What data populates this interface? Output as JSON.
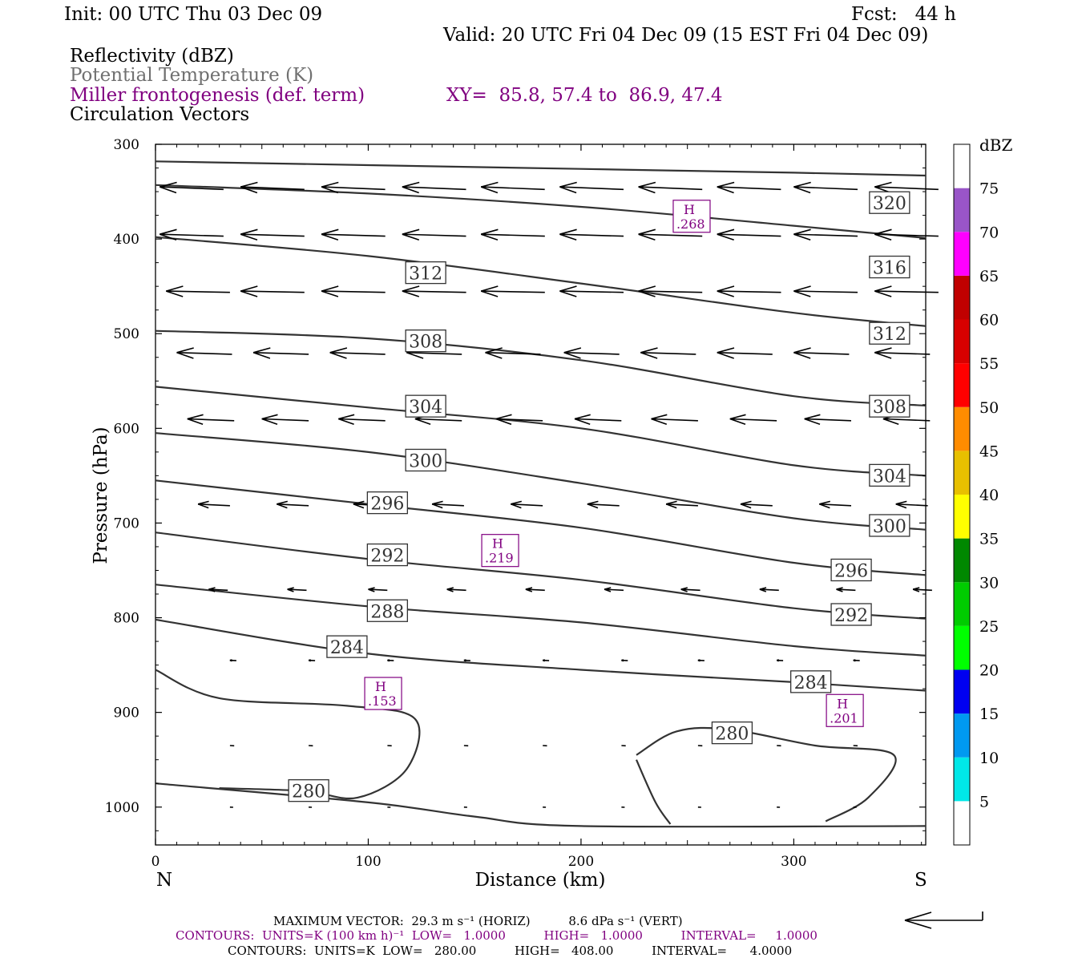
{
  "header": {
    "init": "Init: 00 UTC Thu 03 Dec 09",
    "fcst": "Fcst:   44 h",
    "valid": "Valid: 20 UTC Fri 04 Dec 09 (15 EST Fri 04 Dec 09)",
    "fields": [
      {
        "text": "Reflectivity (dBZ)",
        "color": "#000000"
      },
      {
        "text": "Potential Temperature (K)",
        "color": "#707070"
      },
      {
        "text": "Miller frontogenesis (def. term)",
        "color": "#800080"
      },
      {
        "text": "Circulation Vectors",
        "color": "#000000"
      }
    ],
    "xy": "XY=  85.8, 57.4 to  86.9, 47.4"
  },
  "chart_data": {
    "type": "line",
    "xlabel": "Distance (km)",
    "ylabel": "Pressure (hPa)",
    "x_left_label": "N",
    "x_right_label": "S",
    "xlim": [
      0,
      362
    ],
    "ylim": [
      300,
      1040
    ],
    "y_log_scale": false,
    "xticks": [
      0,
      100,
      200,
      300
    ],
    "yticks": [
      300,
      400,
      500,
      600,
      700,
      800,
      900,
      1000
    ],
    "isentropes": [
      {
        "theta": "320",
        "points": [
          [
            0,
            318
          ],
          [
            100,
            322
          ],
          [
            200,
            326
          ],
          [
            300,
            330
          ],
          [
            362,
            333
          ]
        ]
      },
      {
        "theta": "316",
        "points": [
          [
            0,
            343
          ],
          [
            100,
            352
          ],
          [
            200,
            366
          ],
          [
            300,
            386
          ],
          [
            362,
            399
          ]
        ]
      },
      {
        "theta": "312",
        "points": [
          [
            0,
            398
          ],
          [
            100,
            418
          ],
          [
            200,
            447
          ],
          [
            300,
            478
          ],
          [
            362,
            492
          ]
        ]
      },
      {
        "theta": "308",
        "points": [
          [
            0,
            497
          ],
          [
            100,
            505
          ],
          [
            200,
            528
          ],
          [
            300,
            566
          ],
          [
            362,
            576
          ]
        ]
      },
      {
        "theta": "304",
        "points": [
          [
            0,
            556
          ],
          [
            100,
            578
          ],
          [
            200,
            600
          ],
          [
            300,
            639
          ],
          [
            362,
            650
          ]
        ]
      },
      {
        "theta": "300",
        "points": [
          [
            0,
            605
          ],
          [
            100,
            625
          ],
          [
            200,
            658
          ],
          [
            300,
            695
          ],
          [
            362,
            707
          ]
        ]
      },
      {
        "theta": "296",
        "points": [
          [
            0,
            655
          ],
          [
            100,
            680
          ],
          [
            200,
            705
          ],
          [
            300,
            742
          ],
          [
            362,
            755
          ]
        ]
      },
      {
        "theta": "292",
        "points": [
          [
            0,
            710
          ],
          [
            100,
            738
          ],
          [
            200,
            760
          ],
          [
            300,
            790
          ],
          [
            362,
            801
          ]
        ]
      },
      {
        "theta": "288",
        "points": [
          [
            0,
            765
          ],
          [
            100,
            788
          ],
          [
            200,
            805
          ],
          [
            300,
            830
          ],
          [
            362,
            840
          ]
        ]
      },
      {
        "theta": "284",
        "points": [
          [
            0,
            802
          ],
          [
            100,
            838
          ],
          [
            200,
            855
          ],
          [
            300,
            868
          ],
          [
            362,
            877
          ]
        ]
      }
    ],
    "contour_280": [
      {
        "points": [
          [
            0,
            855
          ],
          [
            30,
            885
          ],
          [
            90,
            893
          ],
          [
            122,
            907
          ],
          [
            118,
            960
          ],
          [
            95,
            990
          ],
          [
            70,
            983
          ],
          [
            30,
            980
          ]
        ]
      },
      {
        "points": [
          [
            226,
            945
          ],
          [
            245,
            920
          ],
          [
            270,
            918
          ],
          [
            310,
            935
          ],
          [
            347,
            945
          ],
          [
            335,
            990
          ],
          [
            315,
            1015
          ]
        ]
      },
      {
        "points": [
          [
            226,
            950
          ],
          [
            235,
            995
          ],
          [
            242,
            1018
          ]
        ]
      }
    ],
    "ground": [
      [
        0,
        975
      ],
      [
        100,
        995
      ],
      [
        150,
        1010
      ],
      [
        200,
        1020
      ],
      [
        362,
        1020
      ]
    ],
    "contour_labels": [
      {
        "text": "320",
        "x": 345,
        "y": 362
      },
      {
        "text": "316",
        "x": 345,
        "y": 430
      },
      {
        "text": "312",
        "x": 127,
        "y": 436
      },
      {
        "text": "312",
        "x": 345,
        "y": 500
      },
      {
        "text": "308",
        "x": 127,
        "y": 508
      },
      {
        "text": "308",
        "x": 345,
        "y": 577
      },
      {
        "text": "304",
        "x": 127,
        "y": 577
      },
      {
        "text": "304",
        "x": 345,
        "y": 650
      },
      {
        "text": "300",
        "x": 127,
        "y": 634
      },
      {
        "text": "300",
        "x": 345,
        "y": 703
      },
      {
        "text": "296",
        "x": 109,
        "y": 679
      },
      {
        "text": "296",
        "x": 327,
        "y": 750
      },
      {
        "text": "292",
        "x": 109,
        "y": 734
      },
      {
        "text": "292",
        "x": 327,
        "y": 797
      },
      {
        "text": "288",
        "x": 109,
        "y": 793
      },
      {
        "text": "284",
        "x": 90,
        "y": 831
      },
      {
        "text": "284",
        "x": 308,
        "y": 868
      },
      {
        "text": "280",
        "x": 72,
        "y": 983
      },
      {
        "text": "280",
        "x": 271,
        "y": 922
      }
    ],
    "maxima": [
      {
        "label": "H",
        "value": ".268",
        "x": 252,
        "y": 376
      },
      {
        "label": "H",
        "value": ".219",
        "x": 162,
        "y": 729
      },
      {
        "label": "H",
        "value": ".153",
        "x": 107,
        "y": 880
      },
      {
        "label": "H",
        "value": ".201",
        "x": 324,
        "y": 898
      }
    ],
    "vector_rows": [
      {
        "p": 345,
        "len": 30,
        "alpha": 0.04,
        "x": [
          2,
          40,
          78,
          116,
          153,
          190,
          227,
          264,
          300,
          338
        ]
      },
      {
        "p": 395,
        "len": 30,
        "alpha": 0.03,
        "x": [
          2,
          40,
          78,
          116,
          153,
          190,
          227,
          264,
          300,
          338
        ]
      },
      {
        "p": 455,
        "len": 30,
        "alpha": 0.02,
        "x": [
          5,
          40,
          78,
          116,
          153,
          190,
          227,
          264,
          300,
          338
        ]
      },
      {
        "p": 520,
        "len": 26,
        "alpha": 0.03,
        "x": [
          10,
          46,
          82,
          118,
          155,
          192,
          228,
          264,
          300,
          338
        ]
      },
      {
        "p": 590,
        "len": 22,
        "alpha": 0.04,
        "x": [
          15,
          50,
          86,
          122,
          160,
          197,
          233,
          270,
          305,
          342
        ]
      },
      {
        "p": 680,
        "len": 15,
        "alpha": 0.05,
        "x": [
          20,
          57,
          93,
          130,
          167,
          203,
          240,
          275,
          312,
          348
        ]
      },
      {
        "p": 770,
        "len": 9,
        "alpha": 0.05,
        "x": [
          25,
          62,
          100,
          137,
          174,
          211,
          247,
          284,
          320,
          356
        ]
      },
      {
        "p": 845,
        "len": 3,
        "alpha": 0.05,
        "x": [
          35,
          72,
          109,
          145,
          182,
          219,
          255,
          292,
          328
        ]
      },
      {
        "p": 935,
        "len": 2,
        "alpha": 0.05,
        "x": [
          35,
          72,
          109,
          145,
          182,
          219,
          255,
          292,
          328
        ]
      },
      {
        "p": 1000,
        "len": 1.5,
        "alpha": 0.05,
        "x": [
          35,
          72,
          109,
          145,
          182,
          219,
          255,
          292,
          328
        ]
      }
    ]
  },
  "colorbar": {
    "title": "dBZ",
    "labels": [
      "5",
      "10",
      "15",
      "20",
      "25",
      "30",
      "35",
      "40",
      "45",
      "50",
      "55",
      "60",
      "65",
      "70",
      "75"
    ],
    "colors": [
      "#00e8e8",
      "#0099f0",
      "#0000f0",
      "#00ff00",
      "#00cc00",
      "#008800",
      "#ffff00",
      "#e8c000",
      "#ff8c00",
      "#ff0000",
      "#d80000",
      "#c00000",
      "#ff00ff",
      "#9955c8",
      "#ffffff"
    ]
  },
  "footer": {
    "max_vector": "MAXIMUM VECTOR:  29.3 m s⁻¹ (HORIZ)          8.6 dPa s⁻¹ (VERT)",
    "contours_purple": "CONTOURS:  UNITS=K (100 km h)⁻¹  LOW=   1.0000          HIGH=   1.0000          INTERVAL=     1.0000",
    "contours_black": "CONTOURS:  UNITS=K  LOW=   280.00          HIGH=   408.00          INTERVAL=      4.0000"
  }
}
